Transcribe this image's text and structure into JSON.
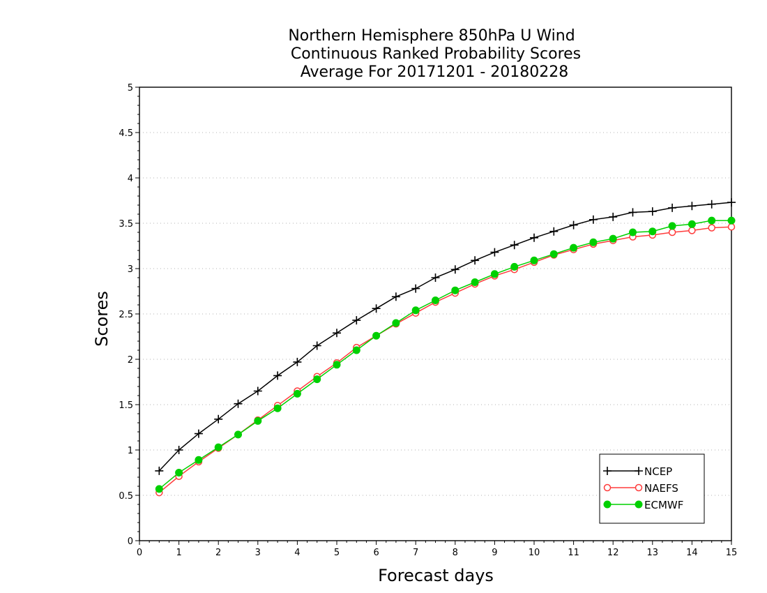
{
  "chart_data": {
    "type": "line",
    "title": [
      "Northern Hemisphere 850hPa U Wind",
      "Continuous Ranked Probability Scores",
      "Average For 20171201 - 20180228"
    ],
    "xlabel": "Forecast days",
    "ylabel": "Scores",
    "xlim": [
      0,
      15
    ],
    "ylim": [
      0,
      5
    ],
    "xticks": [
      0,
      1,
      2,
      3,
      4,
      5,
      6,
      7,
      8,
      9,
      10,
      11,
      12,
      13,
      14,
      15
    ],
    "xtick_labels": [
      "0",
      "1",
      "2",
      "3",
      "4",
      "5",
      "6",
      "7",
      "8",
      "9",
      "10",
      "11",
      "12",
      "13",
      "14",
      "15"
    ],
    "yticks": [
      0,
      0.5,
      1,
      1.5,
      2,
      2.5,
      3,
      3.5,
      4,
      4.5,
      5
    ],
    "ytick_labels": [
      "0",
      "0.5",
      "1",
      "1.5",
      "2",
      "2.5",
      "3",
      "3.5",
      "4",
      "4.5",
      "5"
    ],
    "grid": "horizontal dotted",
    "legend_position": "bottom-right",
    "x": [
      0.5,
      1,
      1.5,
      2,
      2.5,
      3,
      3.5,
      4,
      4.5,
      5,
      5.5,
      6,
      6.5,
      7,
      7.5,
      8,
      8.5,
      9,
      9.5,
      10,
      10.5,
      11,
      11.5,
      12,
      12.5,
      13,
      13.5,
      14,
      14.5,
      15
    ],
    "series": [
      {
        "name": "NCEP",
        "color": "#000000",
        "marker": "plus",
        "values": [
          0.77,
          1.0,
          1.18,
          1.34,
          1.51,
          1.65,
          1.82,
          1.97,
          2.15,
          2.29,
          2.43,
          2.56,
          2.69,
          2.78,
          2.9,
          2.99,
          3.09,
          3.18,
          3.26,
          3.34,
          3.41,
          3.48,
          3.54,
          3.57,
          3.62,
          3.63,
          3.67,
          3.69,
          3.71,
          3.73
        ]
      },
      {
        "name": "NAEFS",
        "color": "#ff3b3b",
        "marker": "open-circle",
        "values": [
          0.53,
          0.71,
          0.87,
          1.02,
          1.17,
          1.33,
          1.49,
          1.65,
          1.81,
          1.96,
          2.13,
          2.26,
          2.39,
          2.51,
          2.63,
          2.73,
          2.83,
          2.92,
          2.99,
          3.07,
          3.15,
          3.21,
          3.27,
          3.31,
          3.35,
          3.37,
          3.4,
          3.42,
          3.45,
          3.46
        ]
      },
      {
        "name": "ECMWF",
        "color": "#00d000",
        "marker": "filled-circle",
        "values": [
          0.57,
          0.75,
          0.89,
          1.03,
          1.17,
          1.32,
          1.46,
          1.62,
          1.78,
          1.94,
          2.1,
          2.26,
          2.4,
          2.54,
          2.65,
          2.76,
          2.85,
          2.94,
          3.02,
          3.09,
          3.16,
          3.23,
          3.29,
          3.33,
          3.4,
          3.41,
          3.47,
          3.49,
          3.53,
          3.53
        ]
      }
    ]
  }
}
